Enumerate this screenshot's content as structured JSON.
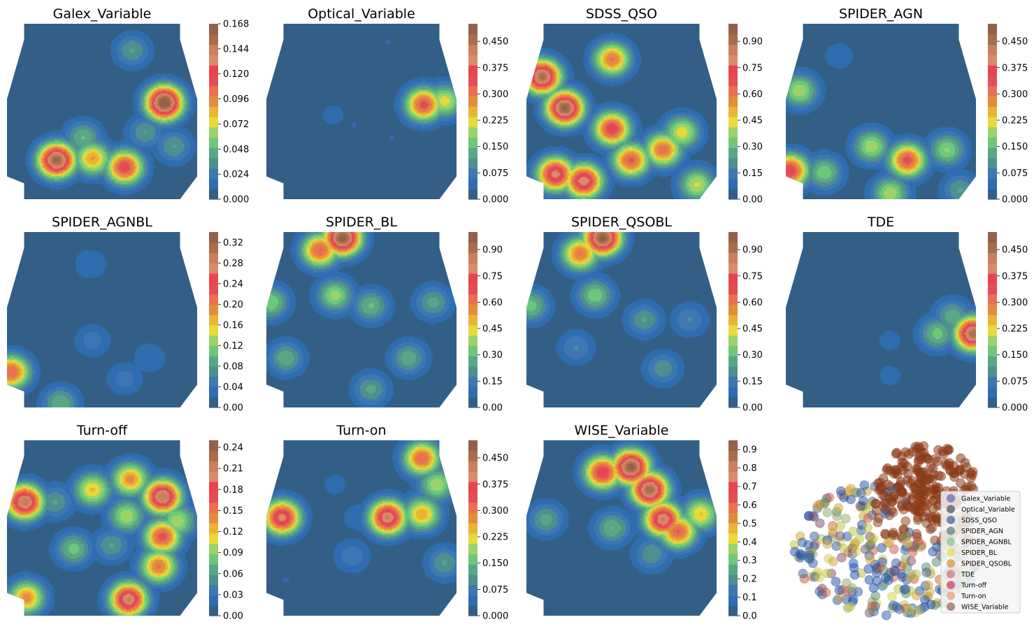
{
  "colormap": [
    "#335f86",
    "#2f6db0",
    "#3d78b4",
    "#4f8f8f",
    "#5aa788",
    "#6cc87a",
    "#9bd36a",
    "#e7da3a",
    "#e9b435",
    "#e38b3f",
    "#e8724f",
    "#e34d57",
    "#e5464f",
    "#d98a6e",
    "#c8805e",
    "#a86d4e",
    "#93614a"
  ],
  "chart_data": [
    {
      "type": "heatmap",
      "title": "Galex_Variable",
      "colorbar_ticks": [
        "0.000",
        "0.024",
        "0.048",
        "0.072",
        "0.096",
        "0.120",
        "0.144",
        "0.168"
      ],
      "range": [
        0,
        0.168
      ],
      "hotspots": [
        [
          0.26,
          0.78,
          0.16
        ],
        [
          0.62,
          0.82,
          0.12
        ],
        [
          0.83,
          0.45,
          0.17
        ],
        [
          0.45,
          0.77,
          0.09
        ],
        [
          0.66,
          0.15,
          0.04
        ],
        [
          0.73,
          0.62,
          0.04
        ],
        [
          0.88,
          0.7,
          0.04
        ],
        [
          0.4,
          0.65,
          0.05
        ]
      ]
    },
    {
      "type": "heatmap",
      "title": "Optical_Variable",
      "colorbar_ticks": [
        "0.000",
        "0.075",
        "0.150",
        "0.225",
        "0.300",
        "0.375",
        "0.450"
      ],
      "range": [
        0,
        0.5
      ],
      "hotspots": [
        [
          0.83,
          0.46,
          0.34
        ],
        [
          0.94,
          0.44,
          0.22
        ],
        [
          0.64,
          0.1,
          0.03
        ],
        [
          0.46,
          0.58,
          0.03
        ],
        [
          0.66,
          0.65,
          0.03
        ],
        [
          0.35,
          0.52,
          0.04
        ],
        [
          0.2,
          0.7,
          0.02
        ]
      ]
    },
    {
      "type": "heatmap",
      "title": "SDSS_QSO",
      "colorbar_ticks": [
        "0.00",
        "0.15",
        "0.30",
        "0.45",
        "0.60",
        "0.75",
        "0.90"
      ],
      "range": [
        0,
        1.0
      ],
      "hotspots": [
        [
          0.2,
          0.48,
          0.96
        ],
        [
          0.08,
          0.3,
          0.92
        ],
        [
          0.45,
          0.6,
          0.72
        ],
        [
          0.3,
          0.9,
          0.82
        ],
        [
          0.55,
          0.78,
          0.66
        ],
        [
          0.72,
          0.72,
          0.62
        ],
        [
          0.82,
          0.62,
          0.45
        ],
        [
          0.9,
          0.92,
          0.42
        ],
        [
          0.15,
          0.86,
          0.8
        ],
        [
          0.45,
          0.2,
          0.6
        ]
      ]
    },
    {
      "type": "heatmap",
      "title": "SPIDER_AGN",
      "colorbar_ticks": [
        "0.000",
        "0.075",
        "0.150",
        "0.225",
        "0.300",
        "0.375",
        "0.450"
      ],
      "range": [
        0,
        0.5
      ],
      "hotspots": [
        [
          0.02,
          0.84,
          0.36
        ],
        [
          0.64,
          0.78,
          0.34
        ],
        [
          0.07,
          0.38,
          0.2
        ],
        [
          0.45,
          0.7,
          0.2
        ],
        [
          0.85,
          0.72,
          0.18
        ],
        [
          0.2,
          0.85,
          0.17
        ],
        [
          0.28,
          0.18,
          0.05
        ],
        [
          0.55,
          0.97,
          0.2
        ],
        [
          0.92,
          0.95,
          0.12
        ]
      ]
    },
    {
      "type": "heatmap",
      "title": "SPIDER_AGNBL",
      "colorbar_ticks": [
        "0.00",
        "0.04",
        "0.08",
        "0.12",
        "0.16",
        "0.20",
        "0.24",
        "0.28",
        "0.32"
      ],
      "range": [
        0,
        0.34
      ],
      "hotspots": [
        [
          0.02,
          0.8,
          0.22
        ],
        [
          0.44,
          0.18,
          0.04
        ],
        [
          0.45,
          0.62,
          0.05
        ],
        [
          0.62,
          0.84,
          0.05
        ],
        [
          0.28,
          0.98,
          0.1
        ],
        [
          0.75,
          0.72,
          0.04
        ]
      ]
    },
    {
      "type": "heatmap",
      "title": "SPIDER_BL",
      "colorbar_ticks": [
        "0.00",
        "0.15",
        "0.30",
        "0.45",
        "0.60",
        "0.75",
        "0.90"
      ],
      "range": [
        0,
        1.0
      ],
      "hotspots": [
        [
          0.4,
          0.03,
          0.98
        ],
        [
          0.28,
          0.1,
          0.65
        ],
        [
          0.36,
          0.36,
          0.38
        ],
        [
          0.55,
          0.42,
          0.3
        ],
        [
          0.02,
          0.4,
          0.35
        ],
        [
          0.75,
          0.72,
          0.28
        ],
        [
          0.1,
          0.72,
          0.28
        ],
        [
          0.88,
          0.4,
          0.26
        ],
        [
          0.55,
          0.9,
          0.25
        ]
      ]
    },
    {
      "type": "heatmap",
      "title": "SPIDER_QSOBL",
      "colorbar_ticks": [
        "0.00",
        "0.15",
        "0.30",
        "0.45",
        "0.60",
        "0.75",
        "0.90"
      ],
      "range": [
        0,
        1.0
      ],
      "hotspots": [
        [
          0.4,
          0.03,
          0.98
        ],
        [
          0.28,
          0.12,
          0.6
        ],
        [
          0.36,
          0.36,
          0.34
        ],
        [
          0.02,
          0.42,
          0.32
        ],
        [
          0.62,
          0.5,
          0.24
        ],
        [
          0.72,
          0.78,
          0.22
        ],
        [
          0.26,
          0.66,
          0.18
        ],
        [
          0.86,
          0.5,
          0.18
        ]
      ]
    },
    {
      "type": "heatmap",
      "title": "TDE",
      "colorbar_ticks": [
        "0.000",
        "0.075",
        "0.150",
        "0.225",
        "0.300",
        "0.375",
        "0.450"
      ],
      "range": [
        0,
        0.5
      ],
      "hotspots": [
        [
          0.99,
          0.58,
          0.46
        ],
        [
          0.8,
          0.58,
          0.16
        ],
        [
          0.88,
          0.48,
          0.14
        ],
        [
          0.55,
          0.62,
          0.04
        ],
        [
          0.55,
          0.82,
          0.04
        ],
        [
          0.2,
          0.3,
          0.02
        ]
      ]
    },
    {
      "type": "heatmap",
      "title": "Turn-off",
      "colorbar_ticks": [
        "0.00",
        "0.03",
        "0.06",
        "0.09",
        "0.12",
        "0.15",
        "0.18",
        "0.21",
        "0.24"
      ],
      "range": [
        0,
        0.25
      ],
      "hotspots": [
        [
          0.09,
          0.35,
          0.22
        ],
        [
          0.82,
          0.32,
          0.22
        ],
        [
          0.64,
          0.91,
          0.21
        ],
        [
          0.82,
          0.55,
          0.17
        ],
        [
          0.65,
          0.22,
          0.14
        ],
        [
          0.8,
          0.72,
          0.15
        ],
        [
          0.25,
          0.35,
          0.06
        ],
        [
          0.45,
          0.28,
          0.12
        ],
        [
          0.63,
          0.43,
          0.1
        ],
        [
          0.1,
          0.9,
          0.14
        ],
        [
          0.9,
          0.46,
          0.1
        ],
        [
          0.35,
          0.62,
          0.08
        ],
        [
          0.55,
          0.6,
          0.06
        ]
      ]
    },
    {
      "type": "heatmap",
      "title": "Turn-on",
      "colorbar_ticks": [
        "0.000",
        "0.075",
        "0.150",
        "0.225",
        "0.300",
        "0.375",
        "0.450"
      ],
      "range": [
        0,
        0.5
      ],
      "hotspots": [
        [
          0.64,
          0.44,
          0.42
        ],
        [
          0.08,
          0.44,
          0.4
        ],
        [
          0.82,
          0.42,
          0.26
        ],
        [
          0.82,
          0.1,
          0.32
        ],
        [
          0.9,
          0.25,
          0.2
        ],
        [
          0.94,
          0.7,
          0.12
        ],
        [
          0.48,
          0.44,
          0.05
        ],
        [
          0.45,
          0.66,
          0.08
        ],
        [
          0.36,
          0.25,
          0.04
        ],
        [
          0.1,
          0.8,
          0.03
        ]
      ]
    },
    {
      "type": "heatmap",
      "title": "WISE_Variable",
      "colorbar_ticks": [
        "0.0",
        "0.1",
        "0.2",
        "0.3",
        "0.4",
        "0.5",
        "0.6",
        "0.7",
        "0.8",
        "0.9"
      ],
      "range": [
        0,
        0.95
      ],
      "hotspots": [
        [
          0.55,
          0.15,
          0.92
        ],
        [
          0.65,
          0.28,
          0.88
        ],
        [
          0.72,
          0.45,
          0.8
        ],
        [
          0.8,
          0.52,
          0.62
        ],
        [
          0.4,
          0.18,
          0.7
        ],
        [
          0.92,
          0.42,
          0.45
        ],
        [
          0.45,
          0.5,
          0.28
        ],
        [
          0.1,
          0.45,
          0.25
        ],
        [
          0.66,
          0.65,
          0.22
        ]
      ]
    },
    {
      "type": "scatter",
      "legend": [
        "Galex_Variable",
        "Optical_Variable",
        "SDSS_QSO",
        "SPIDER_AGN",
        "SPIDER_AGNBL",
        "SPIDER_BL",
        "SPIDER_QSOBL",
        "TDE",
        "Turn-off",
        "Turn-on",
        "WISE_Variable"
      ],
      "legend_colors": [
        "#6a6fb5",
        "#4f5d6a",
        "#4a6898",
        "#5e8680",
        "#86c48a",
        "#ecd955",
        "#cf9b3f",
        "#d77a7a",
        "#c9445a",
        "#e3a273",
        "#9b6a5a"
      ],
      "legend_position": "lower-right"
    }
  ]
}
